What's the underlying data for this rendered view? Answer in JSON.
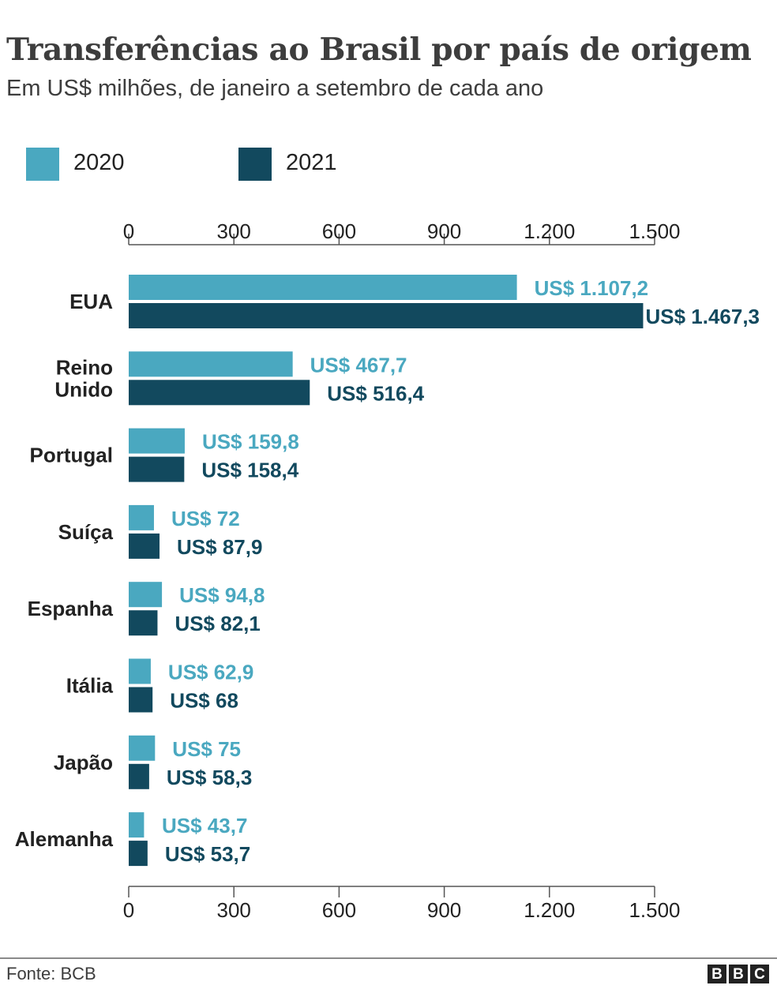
{
  "header": {
    "title": "Transferências ao Brasil por país de origem",
    "subtitle": "Em US$ milhões, de janeiro a setembro de cada ano"
  },
  "footer": {
    "source": "Fonte: BCB",
    "logo_letters": [
      "B",
      "B",
      "C"
    ]
  },
  "chart_data": {
    "type": "bar",
    "orientation": "horizontal",
    "title": "Transferências ao Brasil por país de origem",
    "subtitle": "Em US$ milhões, de janeiro a setembro de cada ano",
    "categories": [
      "EUA",
      "Reino Unido",
      "Portugal",
      "Suíça",
      "Espanha",
      "Itália",
      "Japão",
      "Alemanha"
    ],
    "category_lines": [
      [
        "EUA"
      ],
      [
        "Reino",
        "Unido"
      ],
      [
        "Portugal"
      ],
      [
        "Suíça"
      ],
      [
        "Espanha"
      ],
      [
        "Itália"
      ],
      [
        "Japão"
      ],
      [
        "Alemanha"
      ]
    ],
    "series": [
      {
        "name": "2020",
        "color": "#4aa8c0",
        "values": [
          1107.2,
          467.7,
          159.8,
          72,
          94.8,
          62.9,
          75,
          43.7
        ],
        "labels": [
          "US$ 1.107,2",
          "US$ 467,7",
          "US$ 159,8",
          "US$ 72",
          "US$ 94,8",
          "US$ 62,9",
          "US$ 75",
          "US$ 43,7"
        ]
      },
      {
        "name": "2021",
        "color": "#12495e",
        "values": [
          1467.3,
          516.4,
          158.4,
          87.9,
          82.1,
          68,
          58.3,
          53.7
        ],
        "labels": [
          "US$ 1.467,3",
          "US$ 516,4",
          "US$ 158,4",
          "US$ 87,9",
          "US$ 82,1",
          "US$ 68",
          "US$ 58,3",
          "US$ 53,7"
        ]
      }
    ],
    "xlim": [
      0,
      1500
    ],
    "xticks": [
      0,
      300,
      600,
      900,
      1200,
      1500
    ],
    "xtick_labels": [
      "0",
      "300",
      "600",
      "900",
      "1.200",
      "1.500"
    ],
    "xaxis_position": "top and bottom",
    "grid": false,
    "legend": "top-left"
  }
}
